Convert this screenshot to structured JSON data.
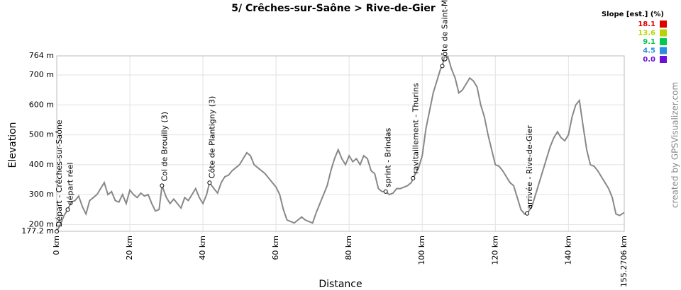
{
  "chart_data": {
    "type": "line",
    "title": "5/ Crêches-sur-Saône > Rive-de-Gier",
    "x_label": "Distance",
    "y_label": "Elevation",
    "credit": "created by GPSVisualizer.com",
    "legend_title": "Slope [est.] (%)",
    "legend": [
      {
        "label": "18.1",
        "color": "#e00000"
      },
      {
        "label": "13.6",
        "color": "#b8d400"
      },
      {
        "label": "9.1",
        "color": "#00c850"
      },
      {
        "label": "4.5",
        "color": "#2a8ee0"
      },
      {
        "label": "0.0",
        "color": "#6a10d8"
      }
    ],
    "series": [
      {
        "name": "Elevation",
        "color": "#888888",
        "x": [
          0,
          1,
          2,
          3,
          4,
          5,
          6,
          7,
          8,
          9,
          10,
          11,
          12,
          13,
          14,
          15,
          16,
          17,
          18,
          19,
          20,
          21,
          22,
          23,
          24,
          25,
          26,
          27,
          28,
          28.8,
          30,
          31,
          32,
          33,
          34,
          35,
          36,
          37,
          38,
          39,
          40,
          41,
          41.8,
          43,
          44,
          45,
          46,
          47,
          48,
          49,
          50,
          51,
          52,
          53,
          54,
          55,
          56,
          57,
          58,
          59,
          60,
          61,
          62,
          63,
          64,
          65,
          66,
          67,
          68,
          69,
          70,
          71,
          72,
          73,
          74,
          75,
          76,
          77,
          78,
          79,
          80,
          81,
          82,
          83,
          84,
          85,
          86,
          87,
          88,
          89,
          90,
          91,
          92,
          93,
          94,
          95,
          96,
          97,
          97.5,
          99,
          100,
          101,
          102,
          103,
          104,
          105,
          105.5,
          106,
          107,
          108,
          109,
          110,
          111,
          112,
          113,
          114,
          115,
          116,
          117,
          118,
          119,
          120,
          121,
          122,
          123,
          124,
          125,
          126,
          127,
          128,
          128.7,
          130,
          131,
          132,
          133,
          134,
          135,
          136,
          137,
          138,
          139,
          140,
          141,
          142,
          143,
          144,
          145,
          146,
          147,
          148,
          149,
          150,
          151,
          152,
          153,
          154,
          155.27
        ],
        "values": [
          177,
          200,
          230,
          250,
          275,
          280,
          295,
          260,
          235,
          280,
          290,
          300,
          320,
          340,
          300,
          310,
          280,
          275,
          300,
          270,
          315,
          300,
          290,
          305,
          295,
          300,
          270,
          245,
          250,
          330,
          290,
          270,
          285,
          270,
          255,
          290,
          280,
          300,
          320,
          290,
          270,
          300,
          340,
          320,
          305,
          340,
          360,
          365,
          380,
          390,
          400,
          420,
          440,
          430,
          400,
          390,
          380,
          370,
          355,
          340,
          325,
          300,
          250,
          215,
          210,
          205,
          215,
          225,
          215,
          210,
          205,
          240,
          270,
          300,
          330,
          380,
          420,
          450,
          420,
          400,
          430,
          410,
          420,
          400,
          430,
          420,
          380,
          370,
          320,
          310,
          310,
          300,
          305,
          320,
          320,
          325,
          330,
          340,
          355,
          390,
          430,
          520,
          580,
          640,
          680,
          720,
          730,
          760,
          762,
          720,
          690,
          640,
          650,
          670,
          690,
          680,
          660,
          600,
          560,
          500,
          450,
          400,
          395,
          380,
          360,
          340,
          330,
          290,
          250,
          235,
          237,
          260,
          300,
          340,
          380,
          420,
          460,
          490,
          510,
          490,
          480,
          500,
          560,
          600,
          615,
          530,
          450,
          400,
          395,
          380,
          360,
          340,
          320,
          290,
          235,
          230,
          240
        ]
      }
    ],
    "waypoints": [
      {
        "label": "Départ - Crêches-sur-Saône",
        "x": 0,
        "y": 177
      },
      {
        "label": "départ réel",
        "x": 3,
        "y": 250
      },
      {
        "label": "Col de Brouilly (3)",
        "x": 28.8,
        "y": 330
      },
      {
        "label": "Côte de Plantigny (3)",
        "x": 41.8,
        "y": 340
      },
      {
        "label": "sprint - Brindas",
        "x": 90,
        "y": 310
      },
      {
        "label": "ravitaillement - Thurins",
        "x": 97.5,
        "y": 355
      },
      {
        "label": "Côte de Saint-Martin",
        "x": 105.5,
        "y": 730
      },
      {
        "label": "arrivée - Rive-de-Gier",
        "x": 128.7,
        "y": 237
      }
    ],
    "xlim": [
      0,
      155.2706
    ],
    "xticks": [
      {
        "value": 0,
        "label": "0 km"
      },
      {
        "value": 20,
        "label": "20 km"
      },
      {
        "value": 40,
        "label": "40 km"
      },
      {
        "value": 60,
        "label": "60 km"
      },
      {
        "value": 80,
        "label": "80 km"
      },
      {
        "value": 100,
        "label": "100 km"
      },
      {
        "value": 120,
        "label": "120 km"
      },
      {
        "value": 140,
        "label": "140 km"
      },
      {
        "value": 155.2706,
        "label": "155.2706 km"
      }
    ],
    "ylim": [
      177.2,
      764
    ],
    "yticks": [
      {
        "value": 177.2,
        "label": "177.2 m"
      },
      {
        "value": 200,
        "label": "200 m"
      },
      {
        "value": 300,
        "label": "300 m"
      },
      {
        "value": 400,
        "label": "400 m"
      },
      {
        "value": 500,
        "label": "500 m"
      },
      {
        "value": 600,
        "label": "600 m"
      },
      {
        "value": 700,
        "label": "700 m"
      },
      {
        "value": 764,
        "label": "764 m"
      }
    ],
    "grid": true
  }
}
